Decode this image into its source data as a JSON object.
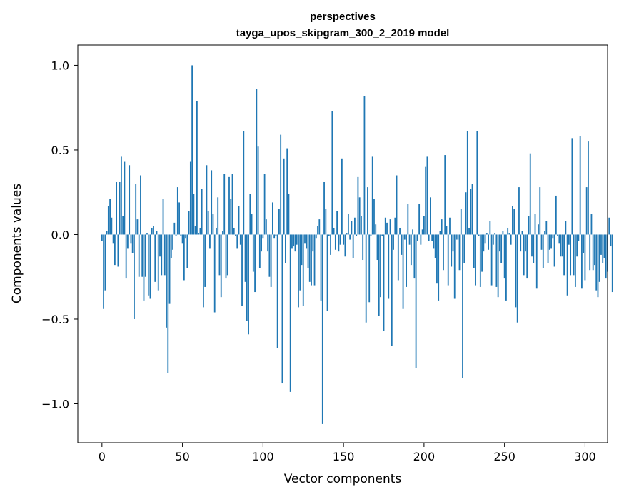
{
  "chart_data": {
    "type": "bar",
    "title": "perspectives",
    "subtitle": "tayga_upos_skipgram_300_2_2019 model",
    "xlabel": "Vector components",
    "ylabel": "Components values",
    "xlim": [
      -15,
      314
    ],
    "ylim": [
      -1.23,
      1.12
    ],
    "xticks": [
      0,
      50,
      100,
      150,
      200,
      250,
      300
    ],
    "yticks": [
      1.0,
      0.5,
      0.0,
      -0.5,
      -1.0
    ],
    "ytick_labels": [
      "1.0",
      "0.5",
      "0.0",
      "−0.5",
      "−1.0"
    ],
    "bar_color": "#1f77b4",
    "grid": false,
    "values": [
      -0.04,
      -0.44,
      -0.33,
      0.02,
      0.17,
      0.21,
      0.1,
      -0.05,
      -0.18,
      0.31,
      -0.19,
      0.31,
      0.46,
      0.11,
      0.43,
      -0.26,
      -0.08,
      0.41,
      -0.05,
      -0.11,
      -0.5,
      0.3,
      0.09,
      -0.25,
      0.35,
      -0.25,
      -0.39,
      -0.25,
      0.01,
      -0.36,
      -0.38,
      0.04,
      0.05,
      -0.28,
      0.02,
      -0.33,
      -0.13,
      -0.24,
      0.21,
      -0.24,
      -0.55,
      -0.82,
      -0.41,
      -0.14,
      -0.09,
      0.07,
      -0.01,
      0.28,
      0.19,
      -0.01,
      -0.05,
      -0.27,
      -0.02,
      -0.2,
      0.14,
      0.43,
      1.0,
      0.24,
      0.05,
      0.79,
      0.01,
      0.04,
      0.27,
      -0.43,
      -0.31,
      0.41,
      0.14,
      -0.08,
      0.38,
      0.12,
      -0.46,
      0.04,
      0.22,
      -0.24,
      -0.37,
      0.02,
      0.36,
      -0.26,
      -0.24,
      0.34,
      0.21,
      0.36,
      0.04,
      -0.01,
      -0.08,
      0.17,
      -0.06,
      -0.42,
      0.61,
      -0.28,
      -0.51,
      -0.59,
      0.24,
      0.12,
      -0.22,
      -0.34,
      0.86,
      0.52,
      -0.2,
      -0.1,
      -0.02,
      0.36,
      0.09,
      -0.1,
      -0.25,
      -0.31,
      0.19,
      -0.02,
      -0.01,
      -0.67,
      0.15,
      0.59,
      -0.88,
      0.45,
      -0.17,
      0.51,
      0.24,
      -0.93,
      -0.08,
      -0.07,
      -0.1,
      -0.06,
      -0.43,
      -0.33,
      -0.18,
      -0.42,
      -0.05,
      -0.08,
      -0.2,
      -0.28,
      -0.3,
      -0.1,
      -0.3,
      -0.02,
      0.05,
      0.09,
      -0.39,
      -1.12,
      0.31,
      0.15,
      -0.45,
      -0.01,
      -0.12,
      0.73,
      0.04,
      -0.09,
      0.14,
      -0.1,
      -0.06,
      0.45,
      -0.06,
      -0.13,
      0.01,
      0.12,
      -0.03,
      0.08,
      -0.14,
      0.1,
      -0.01,
      0.34,
      0.22,
      0.11,
      -0.15,
      0.82,
      -0.52,
      0.28,
      -0.4,
      -0.01,
      0.46,
      0.21,
      0.06,
      -0.15,
      -0.48,
      -0.37,
      -0.01,
      -0.57,
      0.1,
      0.07,
      -0.38,
      0.09,
      -0.66,
      -0.09,
      0.1,
      0.35,
      -0.27,
      0.04,
      -0.12,
      -0.44,
      -0.03,
      -0.31,
      0.18,
      -0.06,
      -0.18,
      0.03,
      -0.26,
      -0.79,
      -0.04,
      0.18,
      -0.06,
      0.03,
      0.11,
      0.4,
      0.46,
      -0.04,
      0.22,
      -0.04,
      -0.08,
      -0.14,
      -0.29,
      -0.39,
      0.02,
      0.09,
      -0.21,
      0.47,
      0.05,
      -0.3,
      0.1,
      -0.19,
      -0.1,
      -0.38,
      -0.03,
      -0.03,
      -0.21,
      0.15,
      -0.85,
      -0.17,
      0.25,
      0.61,
      0.04,
      0.27,
      0.3,
      -0.2,
      -0.3,
      0.61,
      -0.01,
      -0.31,
      -0.22,
      -0.1,
      -0.05,
      0.01,
      -0.09,
      0.08,
      -0.3,
      -0.06,
      0.01,
      -0.31,
      -0.37,
      -0.1,
      -0.17,
      0.02,
      -0.26,
      -0.39,
      0.04,
      0.01,
      -0.06,
      0.17,
      0.15,
      -0.43,
      -0.52,
      0.28,
      -0.1,
      0.02,
      -0.24,
      -0.1,
      -0.26,
      0.11,
      0.48,
      -0.13,
      -0.17,
      0.12,
      -0.32,
      0.06,
      0.28,
      -0.09,
      -0.2,
      0.02,
      0.08,
      -0.17,
      -0.09,
      -0.08,
      -0.02,
      -0.19,
      0.23,
      -0.01,
      -0.05,
      -0.13,
      -0.13,
      -0.24,
      0.08,
      -0.36,
      -0.06,
      -0.24,
      0.57,
      -0.24,
      -0.31,
      -0.13,
      -0.04,
      0.58,
      -0.32,
      -0.11,
      -0.27,
      0.28,
      0.55,
      -0.21,
      0.12,
      -0.21,
      -0.18,
      -0.33,
      -0.37,
      -0.28,
      -0.12,
      -0.17,
      -0.14,
      -0.26,
      -0.22,
      0.1,
      -0.07,
      -0.34
    ]
  }
}
